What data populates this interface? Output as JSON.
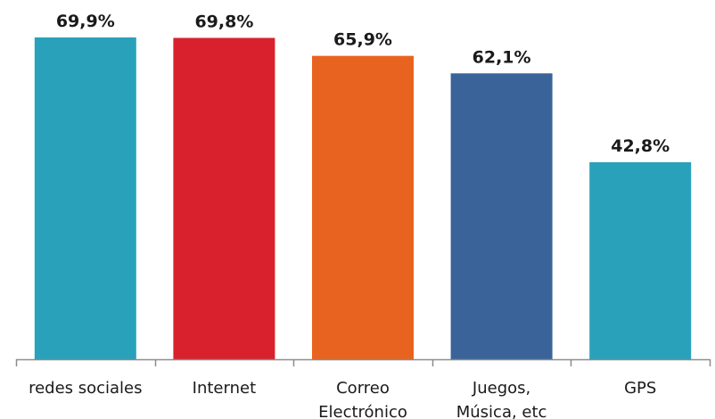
{
  "chart_data": {
    "type": "bar",
    "categories": [
      [
        "redes sociales"
      ],
      [
        "Internet"
      ],
      [
        "Correo",
        "Electrónico"
      ],
      [
        "Juegos,",
        "Música, etc"
      ],
      [
        "GPS"
      ]
    ],
    "values": [
      69.9,
      69.8,
      65.9,
      62.1,
      42.8
    ],
    "value_labels": [
      "69,9%",
      "69,8%",
      "65,9%",
      "62,1%",
      "42,8%"
    ],
    "colors": [
      "#2aa1ba",
      "#d9212d",
      "#e8631f",
      "#3a6499",
      "#2aa1ba"
    ],
    "ylim": [
      0,
      69.9
    ],
    "grid": false,
    "legend": "none"
  }
}
